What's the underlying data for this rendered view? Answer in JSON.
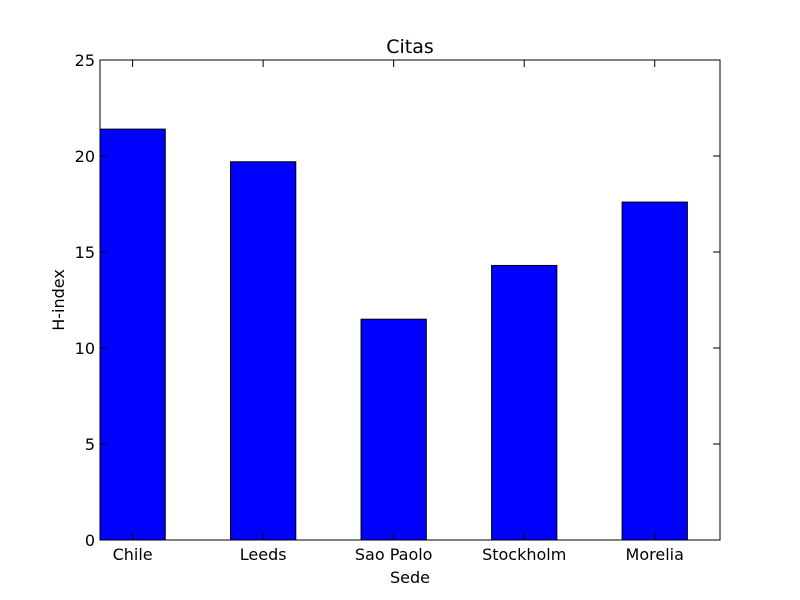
{
  "chart_data": {
    "type": "bar",
    "title": "Citas",
    "xlabel": "Sede",
    "ylabel": "H-index",
    "categories": [
      "Chile",
      "Leeds",
      "Sao Paolo",
      "Stockholm",
      "Morelia"
    ],
    "values": [
      21.4,
      19.7,
      11.5,
      14.3,
      17.6
    ],
    "ylim": [
      0,
      25
    ],
    "yticks": [
      0,
      5,
      10,
      15,
      20,
      25
    ],
    "grid": false,
    "colors": {
      "bar_fill": "#0000ff",
      "bar_edge": "#000000"
    }
  }
}
